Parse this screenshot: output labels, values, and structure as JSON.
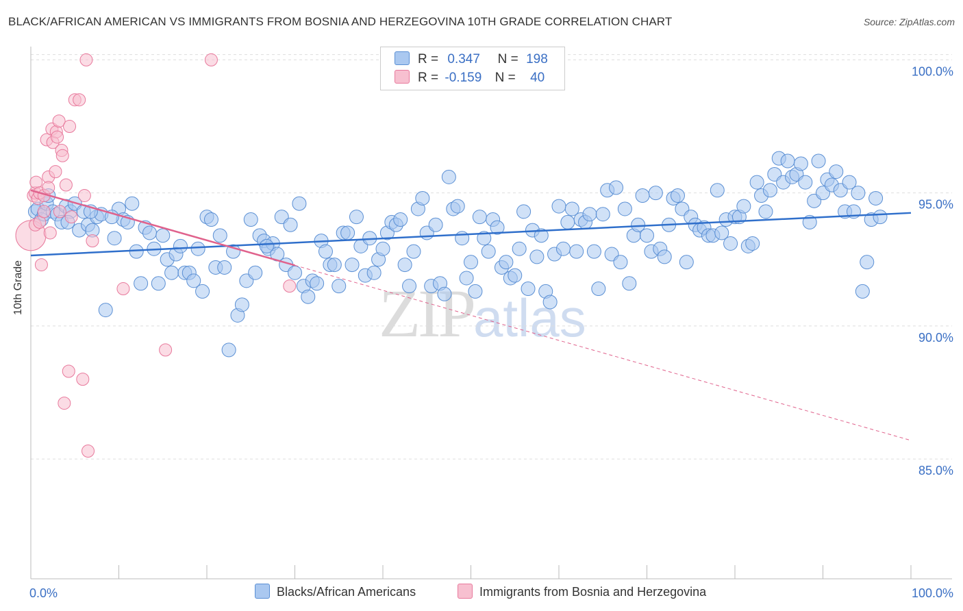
{
  "title": "BLACK/AFRICAN AMERICAN VS IMMIGRANTS FROM BOSNIA AND HERZEGOVINA 10TH GRADE CORRELATION CHART",
  "source": "Source: ZipAtlas.com",
  "watermark": {
    "zip": "ZIP",
    "atlas": "atlas"
  },
  "legend": {
    "series1": {
      "r_label": "R =",
      "r_value": "0.347",
      "n_label": "N =",
      "n_value": "198"
    },
    "series2": {
      "r_label": "R =",
      "r_value": "-0.159",
      "n_label": "N =",
      "n_value": "40"
    }
  },
  "colors": {
    "blue_fill": "#aac8f0",
    "blue_stroke": "#5a8fd4",
    "blue_line": "#2f6fcb",
    "pink_fill": "#f7c0d0",
    "pink_stroke": "#e8799c",
    "pink_line": "#e0628c",
    "tick_label": "#3a6fc4",
    "grid": "#dddddd"
  },
  "chart_data": {
    "type": "scatter",
    "title": "BLACK/AFRICAN AMERICAN VS IMMIGRANTS FROM BOSNIA AND HERZEGOVINA 10TH GRADE CORRELATION CHART",
    "xlabel": "",
    "ylabel": "10th Grade",
    "xlim": [
      0,
      100
    ],
    "ylim": [
      80.5,
      100.5
    ],
    "x_tick_labels": [
      "0.0%",
      "100.0%"
    ],
    "y_ticks": [
      85,
      90,
      95,
      100
    ],
    "y_tick_labels": [
      "85.0%",
      "90.0%",
      "95.0%",
      "100.0%"
    ],
    "grid": true,
    "legend_position": "top-center",
    "series": [
      {
        "name": "Blacks/African Americans",
        "r": 0.347,
        "n": 198,
        "trend": {
          "x": [
            0,
            100
          ],
          "y": [
            92.65,
            94.25
          ]
        },
        "points": [
          [
            0.5,
            94.3
          ],
          [
            0.8,
            94.4
          ],
          [
            1.2,
            94.0
          ],
          [
            1.5,
            94.2
          ],
          [
            1.8,
            94.6
          ],
          [
            2.0,
            94.9
          ],
          [
            2.5,
            94.3
          ],
          [
            3.0,
            94.2
          ],
          [
            3.5,
            93.9
          ],
          [
            4.0,
            94.5
          ],
          [
            4.5,
            94.3
          ],
          [
            5.0,
            94.6
          ],
          [
            5.5,
            93.6
          ],
          [
            6.0,
            94.3
          ],
          [
            6.5,
            93.8
          ],
          [
            7.0,
            93.6
          ],
          [
            7.5,
            94.1
          ],
          [
            8.0,
            94.2
          ],
          [
            8.5,
            90.6
          ],
          [
            9.5,
            93.3
          ],
          [
            10.0,
            94.4
          ],
          [
            10.5,
            94.0
          ],
          [
            11.0,
            93.9
          ],
          [
            11.5,
            94.6
          ],
          [
            12.0,
            92.8
          ],
          [
            12.5,
            91.6
          ],
          [
            13.0,
            93.7
          ],
          [
            13.5,
            93.5
          ],
          [
            14.0,
            92.9
          ],
          [
            14.5,
            91.6
          ],
          [
            15.0,
            93.4
          ],
          [
            15.5,
            92.5
          ],
          [
            16.0,
            92.0
          ],
          [
            16.5,
            92.7
          ],
          [
            17.0,
            93.0
          ],
          [
            17.5,
            92.0
          ],
          [
            18.0,
            92.0
          ],
          [
            18.5,
            91.7
          ],
          [
            19.0,
            92.9
          ],
          [
            19.5,
            91.3
          ],
          [
            20.0,
            94.1
          ],
          [
            20.5,
            94.0
          ],
          [
            21.0,
            92.2
          ],
          [
            21.5,
            93.4
          ],
          [
            22.0,
            92.2
          ],
          [
            22.5,
            89.1
          ],
          [
            23.0,
            92.8
          ],
          [
            23.5,
            90.4
          ],
          [
            24.0,
            90.8
          ],
          [
            24.5,
            91.7
          ],
          [
            25.0,
            94.0
          ],
          [
            25.5,
            92.0
          ],
          [
            26.0,
            93.4
          ],
          [
            26.5,
            93.2
          ],
          [
            27.0,
            92.9
          ],
          [
            27.5,
            93.1
          ],
          [
            28.0,
            92.7
          ],
          [
            28.5,
            94.1
          ],
          [
            29.0,
            92.3
          ],
          [
            29.5,
            93.8
          ],
          [
            30.0,
            92.0
          ],
          [
            30.5,
            94.6
          ],
          [
            31.0,
            91.5
          ],
          [
            31.5,
            91.1
          ],
          [
            32.0,
            91.7
          ],
          [
            32.5,
            91.6
          ],
          [
            33.0,
            93.2
          ],
          [
            33.5,
            92.8
          ],
          [
            34.0,
            92.3
          ],
          [
            34.5,
            92.3
          ],
          [
            35.0,
            91.5
          ],
          [
            35.5,
            93.5
          ],
          [
            36.0,
            93.5
          ],
          [
            36.5,
            92.3
          ],
          [
            37.0,
            94.1
          ],
          [
            37.5,
            93.0
          ],
          [
            38.0,
            91.9
          ],
          [
            38.5,
            93.3
          ],
          [
            39.0,
            92.0
          ],
          [
            39.5,
            92.5
          ],
          [
            40.0,
            92.9
          ],
          [
            40.5,
            93.5
          ],
          [
            41.0,
            93.9
          ],
          [
            41.5,
            93.8
          ],
          [
            42.0,
            94.0
          ],
          [
            42.5,
            92.3
          ],
          [
            43.0,
            91.5
          ],
          [
            43.5,
            92.8
          ],
          [
            44.0,
            94.4
          ],
          [
            44.5,
            94.8
          ],
          [
            45.0,
            93.5
          ],
          [
            45.5,
            91.5
          ],
          [
            46.0,
            93.8
          ],
          [
            46.5,
            91.6
          ],
          [
            47.0,
            91.2
          ],
          [
            47.5,
            95.6
          ],
          [
            48.0,
            94.4
          ],
          [
            48.5,
            94.5
          ],
          [
            49.0,
            93.3
          ],
          [
            49.5,
            91.8
          ],
          [
            50.0,
            92.4
          ],
          [
            50.5,
            91.3
          ],
          [
            51.0,
            94.1
          ],
          [
            51.5,
            93.3
          ],
          [
            52.0,
            92.8
          ],
          [
            52.5,
            94.0
          ],
          [
            53.0,
            93.7
          ],
          [
            53.5,
            92.2
          ],
          [
            54.0,
            92.4
          ],
          [
            54.5,
            91.8
          ],
          [
            55.0,
            91.9
          ],
          [
            55.5,
            92.9
          ],
          [
            56.0,
            94.3
          ],
          [
            56.5,
            91.4
          ],
          [
            57.0,
            93.6
          ],
          [
            57.5,
            92.6
          ],
          [
            58.0,
            93.4
          ],
          [
            58.5,
            91.3
          ],
          [
            59.0,
            90.9
          ],
          [
            59.5,
            92.7
          ],
          [
            60.0,
            94.5
          ],
          [
            60.5,
            92.9
          ],
          [
            61.0,
            93.9
          ],
          [
            61.5,
            94.4
          ],
          [
            62.0,
            92.8
          ],
          [
            62.5,
            94.0
          ],
          [
            63.0,
            93.9
          ],
          [
            63.5,
            94.2
          ],
          [
            64.0,
            92.8
          ],
          [
            64.5,
            91.4
          ],
          [
            65.0,
            94.2
          ],
          [
            65.5,
            95.1
          ],
          [
            66.0,
            92.7
          ],
          [
            66.5,
            95.2
          ],
          [
            67.0,
            92.4
          ],
          [
            67.5,
            94.4
          ],
          [
            68.0,
            91.6
          ],
          [
            68.5,
            93.4
          ],
          [
            69.0,
            93.8
          ],
          [
            69.5,
            94.9
          ],
          [
            70.0,
            93.4
          ],
          [
            70.5,
            92.8
          ],
          [
            71.0,
            95.0
          ],
          [
            71.5,
            92.9
          ],
          [
            72.0,
            92.6
          ],
          [
            72.5,
            93.8
          ],
          [
            73.0,
            94.8
          ],
          [
            73.5,
            94.9
          ],
          [
            74.0,
            94.4
          ],
          [
            74.5,
            92.4
          ],
          [
            75.0,
            94.1
          ],
          [
            75.5,
            93.8
          ],
          [
            76.0,
            93.6
          ],
          [
            76.5,
            93.7
          ],
          [
            77.0,
            93.4
          ],
          [
            77.5,
            93.4
          ],
          [
            78.0,
            95.1
          ],
          [
            78.5,
            93.5
          ],
          [
            79.0,
            94.0
          ],
          [
            79.5,
            93.1
          ],
          [
            80.0,
            94.1
          ],
          [
            80.5,
            94.1
          ],
          [
            81.0,
            94.5
          ],
          [
            81.5,
            93.0
          ],
          [
            82.0,
            93.1
          ],
          [
            82.5,
            95.4
          ],
          [
            83.0,
            94.9
          ],
          [
            83.5,
            94.3
          ],
          [
            84.0,
            95.1
          ],
          [
            84.5,
            95.7
          ],
          [
            85.0,
            96.3
          ],
          [
            85.5,
            95.4
          ],
          [
            86.0,
            96.2
          ],
          [
            86.5,
            95.6
          ],
          [
            87.0,
            95.7
          ],
          [
            87.5,
            96.1
          ],
          [
            88.0,
            95.4
          ],
          [
            88.5,
            93.9
          ],
          [
            89.0,
            94.7
          ],
          [
            89.5,
            96.2
          ],
          [
            90.0,
            95.0
          ],
          [
            90.5,
            95.5
          ],
          [
            91.0,
            95.3
          ],
          [
            91.5,
            95.8
          ],
          [
            92.0,
            95.1
          ],
          [
            92.5,
            94.3
          ],
          [
            93.0,
            95.4
          ],
          [
            93.5,
            94.3
          ],
          [
            94.0,
            95.0
          ],
          [
            94.5,
            91.3
          ],
          [
            95.0,
            92.4
          ],
          [
            95.5,
            94.0
          ],
          [
            96.0,
            94.8
          ],
          [
            96.5,
            94.1
          ],
          [
            4.2,
            93.9
          ],
          [
            6.8,
            94.3
          ],
          [
            9.2,
            94.1
          ],
          [
            26.8,
            93.0
          ]
        ]
      },
      {
        "name": "Immigrants from Bosnia and Herzegovina",
        "r": -0.159,
        "n": 40,
        "trend": {
          "x": [
            0,
            100
          ],
          "y": [
            95.1,
            85.7
          ],
          "solid_until_x": 30
        },
        "points": [
          [
            0.0,
            93.4
          ],
          [
            0.3,
            94.9
          ],
          [
            0.5,
            95.0
          ],
          [
            0.5,
            93.8
          ],
          [
            0.6,
            95.4
          ],
          [
            0.8,
            94.8
          ],
          [
            1.0,
            93.9
          ],
          [
            1.0,
            95.0
          ],
          [
            1.2,
            92.3
          ],
          [
            1.5,
            94.9
          ],
          [
            1.5,
            94.3
          ],
          [
            1.8,
            97.0
          ],
          [
            2.0,
            95.6
          ],
          [
            2.0,
            95.2
          ],
          [
            2.2,
            93.5
          ],
          [
            2.4,
            97.4
          ],
          [
            2.5,
            96.9
          ],
          [
            2.8,
            95.8
          ],
          [
            2.9,
            97.3
          ],
          [
            3.0,
            97.1
          ],
          [
            3.2,
            97.7
          ],
          [
            3.3,
            94.3
          ],
          [
            3.5,
            96.6
          ],
          [
            3.6,
            96.4
          ],
          [
            3.8,
            87.1
          ],
          [
            4.0,
            95.3
          ],
          [
            4.3,
            88.3
          ],
          [
            4.4,
            97.5
          ],
          [
            4.6,
            94.1
          ],
          [
            5.0,
            98.5
          ],
          [
            5.5,
            98.5
          ],
          [
            5.9,
            88.0
          ],
          [
            6.1,
            94.9
          ],
          [
            6.5,
            85.3
          ],
          [
            6.3,
            100.0
          ],
          [
            7.0,
            93.2
          ],
          [
            10.5,
            91.4
          ],
          [
            15.3,
            89.1
          ],
          [
            20.5,
            100.0
          ],
          [
            29.4,
            91.5
          ]
        ]
      }
    ]
  },
  "bottom_legend": {
    "series1": "Blacks/African Americans",
    "series2": "Immigrants from Bosnia and Herzegovina"
  }
}
